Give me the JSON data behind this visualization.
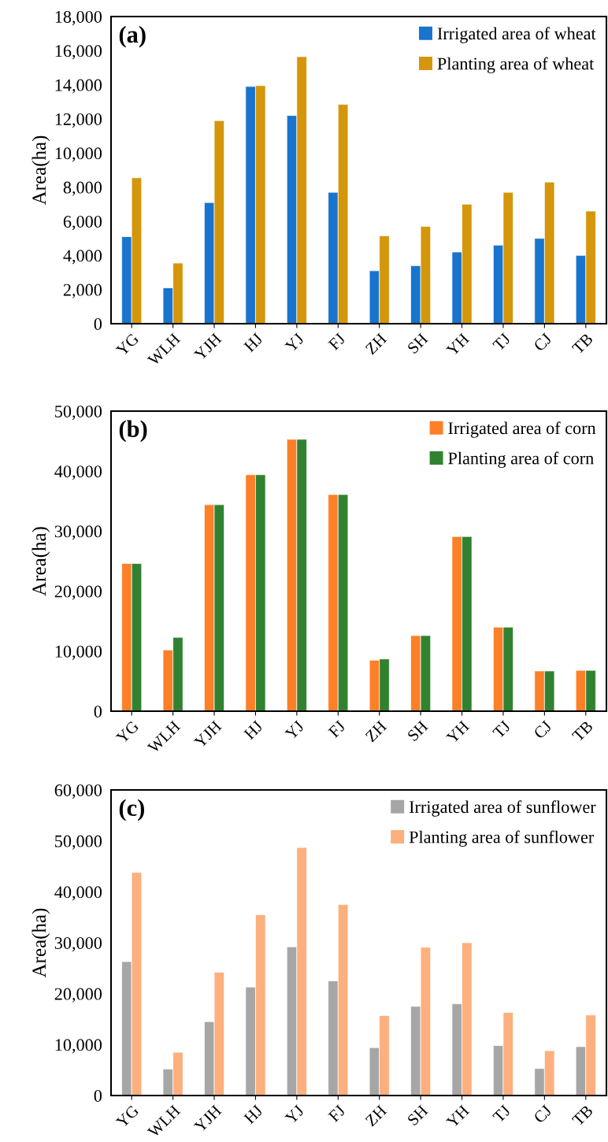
{
  "chart_data": [
    {
      "type": "bar",
      "ylabel": "Area(ha)",
      "annotations": [
        "(a)"
      ],
      "categories": [
        "YG",
        "WLH",
        "YJH",
        "HJ",
        "YJ",
        "FJ",
        "ZH",
        "SH",
        "YH",
        "TJ",
        "CJ",
        "TB"
      ],
      "series": [
        {
          "name": "Irrigated area of wheat",
          "color": "#1874cd",
          "values": [
            5100,
            2100,
            7100,
            13900,
            12200,
            7700,
            3100,
            3400,
            4200,
            4600,
            5000,
            4000
          ]
        },
        {
          "name": "Planting area of wheat",
          "color": "#d4960a",
          "values": [
            8550,
            3550,
            11900,
            13950,
            15650,
            12850,
            5150,
            5700,
            7000,
            7700,
            8300,
            6600
          ]
        }
      ],
      "ylim": [
        0,
        18000
      ],
      "yticks": [
        0,
        {
          "value": 2000,
          "label": "2,000"
        },
        {
          "value": 4000,
          "label": "4,000"
        },
        {
          "value": 6000,
          "label": "6,000"
        },
        {
          "value": 8000,
          "label": "8,000"
        },
        {
          "value": 10000,
          "label": "10,000"
        },
        {
          "value": 12000,
          "label": "12,000"
        },
        {
          "value": 14000,
          "label": "14,000"
        },
        {
          "value": 16000,
          "label": "16,000"
        },
        {
          "value": 18000,
          "label": "18,000"
        }
      ],
      "legend": "top right",
      "grid": false
    },
    {
      "type": "bar",
      "ylabel": "Area(ha)",
      "annotations": [
        "(b)"
      ],
      "categories": [
        "YG",
        "WLH",
        "YJH",
        "HJ",
        "YJ",
        "FJ",
        "ZH",
        "SH",
        "YH",
        "TJ",
        "CJ",
        "TB"
      ],
      "series": [
        {
          "name": "Irrigated area of corn",
          "color": "#fd7f28",
          "values": [
            24600,
            10200,
            34400,
            39400,
            45300,
            36100,
            8500,
            12600,
            29100,
            14000,
            6700,
            6800
          ]
        },
        {
          "name": "Planting area of corn",
          "color": "#318230",
          "values": [
            24600,
            12300,
            34400,
            39400,
            45300,
            36100,
            8700,
            12600,
            29100,
            14000,
            6700,
            6800
          ]
        }
      ],
      "ylim": [
        0,
        50000
      ],
      "yticks": [
        0,
        {
          "value": 10000,
          "label": "10,000"
        },
        {
          "value": 20000,
          "label": "20,000"
        },
        {
          "value": 30000,
          "label": "30,000"
        },
        {
          "value": 40000,
          "label": "40,000"
        },
        {
          "value": 50000,
          "label": "50,000"
        }
      ],
      "legend": "top right",
      "grid": false
    },
    {
      "type": "bar",
      "ylabel": "Area(ha)",
      "annotations": [
        "(c)"
      ],
      "categories": [
        "YG",
        "WLH",
        "YJH",
        "HJ",
        "YJ",
        "FJ",
        "ZH",
        "SH",
        "YH",
        "TJ",
        "CJ",
        "TB"
      ],
      "series": [
        {
          "name": "Irrigated area of sunflower",
          "color": "#a6a6a6",
          "values": [
            26300,
            5200,
            14500,
            21300,
            29200,
            22500,
            9400,
            17500,
            18000,
            9800,
            5300,
            9600
          ]
        },
        {
          "name": "Planting area of sunflower",
          "color": "#fdaf7d",
          "values": [
            43800,
            8500,
            24200,
            35500,
            48700,
            37500,
            15700,
            29100,
            30000,
            16300,
            8800,
            15800
          ]
        }
      ],
      "ylim": [
        0,
        60000
      ],
      "yticks": [
        0,
        {
          "value": 10000,
          "label": "10,000"
        },
        {
          "value": 20000,
          "label": "20,000"
        },
        {
          "value": 30000,
          "label": "30,000"
        },
        {
          "value": 40000,
          "label": "40,000"
        },
        {
          "value": 50000,
          "label": "50,000"
        },
        {
          "value": 60000,
          "label": "60,000"
        }
      ],
      "legend": "top right",
      "grid": false
    }
  ]
}
